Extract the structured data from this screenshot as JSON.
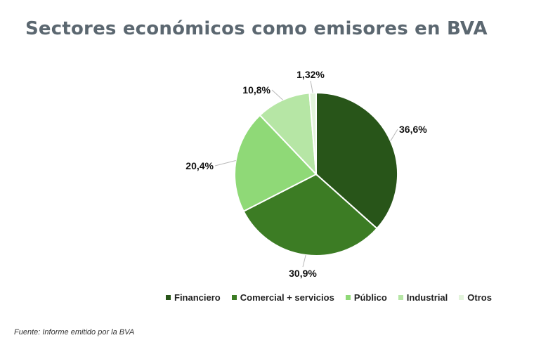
{
  "title": "Sectores económicos como emisores en BVA",
  "source": "Fuente: Informe emitido por la BVA",
  "chart_data": {
    "type": "pie",
    "title": "Sectores económicos como emisores en BVA",
    "legend_position": "bottom",
    "categories": [
      "Financiero",
      "Comercial + servicios",
      "Público",
      "Industrial",
      "Otros"
    ],
    "values": [
      36.6,
      30.9,
      20.4,
      10.8,
      1.32
    ],
    "labels": [
      "36,6%",
      "30,9%",
      "20,4%",
      "10,8%",
      "1,32%"
    ],
    "colors": [
      "#285519",
      "#3c7c24",
      "#8fd977",
      "#b6e6a5",
      "#e3f4dc"
    ]
  }
}
